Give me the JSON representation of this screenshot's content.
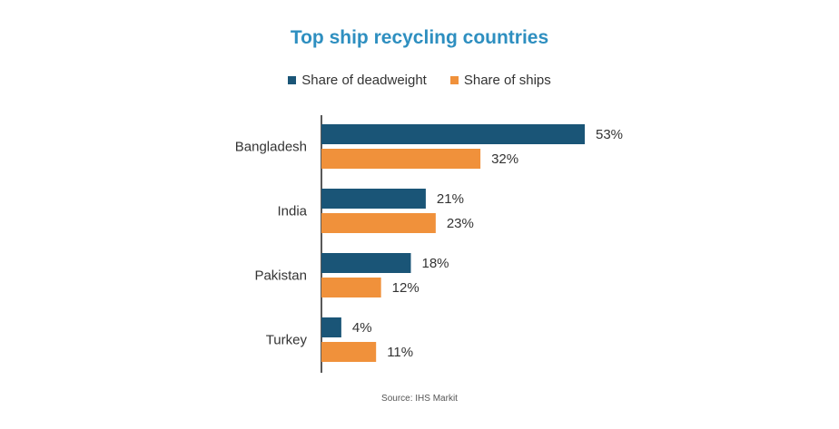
{
  "chart_data": {
    "type": "bar",
    "orientation": "horizontal",
    "title": "Top ship recycling countries",
    "categories": [
      "Bangladesh",
      "India",
      "Pakistan",
      "Turkey"
    ],
    "series": [
      {
        "name": "Share of deadweight",
        "values": [
          53,
          21,
          18,
          4
        ],
        "color": "#1a5577"
      },
      {
        "name": "Share of ships",
        "values": [
          32,
          23,
          12,
          11
        ],
        "color": "#f0913b"
      }
    ],
    "value_suffix": "%",
    "xlim": [
      0,
      53
    ],
    "grid": false,
    "legend_position": "top-center",
    "source": "Source: IHS Markit"
  },
  "colors": {
    "title": "#2e8fc0",
    "axis": "#222222"
  }
}
